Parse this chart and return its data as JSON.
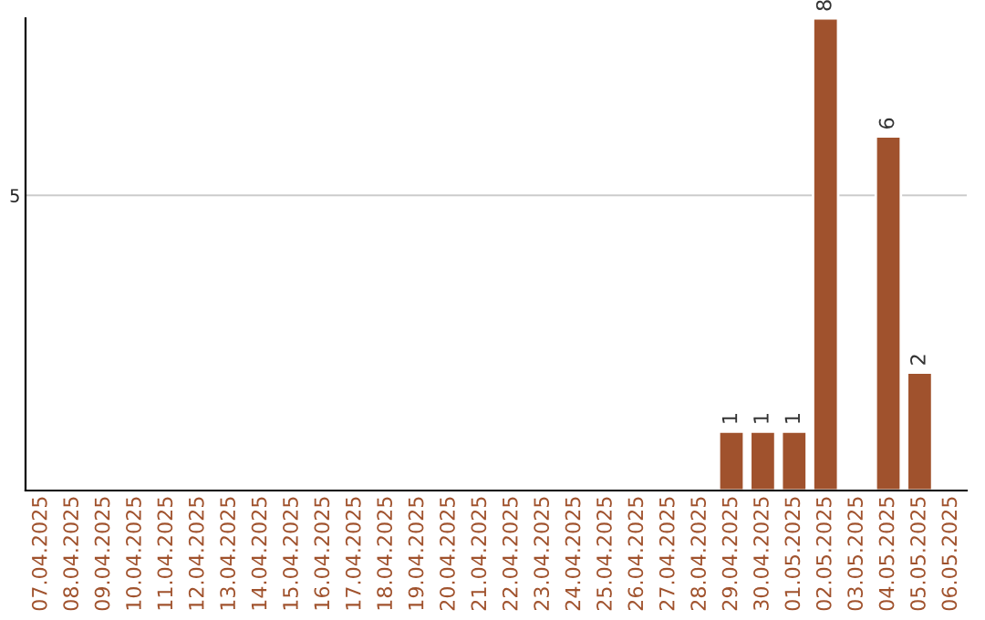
{
  "chart_data": {
    "type": "bar",
    "categories": [
      "07.04.2025",
      "08.04.2025",
      "09.04.2025",
      "10.04.2025",
      "11.04.2025",
      "12.04.2025",
      "13.04.2025",
      "14.04.2025",
      "15.04.2025",
      "16.04.2025",
      "17.04.2025",
      "18.04.2025",
      "19.04.2025",
      "20.04.2025",
      "21.04.2025",
      "22.04.2025",
      "23.04.2025",
      "24.04.2025",
      "25.04.2025",
      "26.04.2025",
      "27.04.2025",
      "28.04.2025",
      "29.04.2025",
      "30.04.2025",
      "01.05.2025",
      "02.05.2025",
      "03.05.2025",
      "04.05.2025",
      "05.05.2025",
      "06.05.2025"
    ],
    "values": [
      null,
      null,
      null,
      null,
      null,
      null,
      null,
      null,
      null,
      null,
      null,
      null,
      null,
      null,
      null,
      null,
      null,
      null,
      null,
      null,
      null,
      null,
      1,
      1,
      1,
      8,
      null,
      6,
      2,
      null
    ],
    "data_labels": true,
    "color": "#a0522d",
    "ylim": [
      0,
      8
    ],
    "yticks": [
      5
    ],
    "grid": "y"
  }
}
